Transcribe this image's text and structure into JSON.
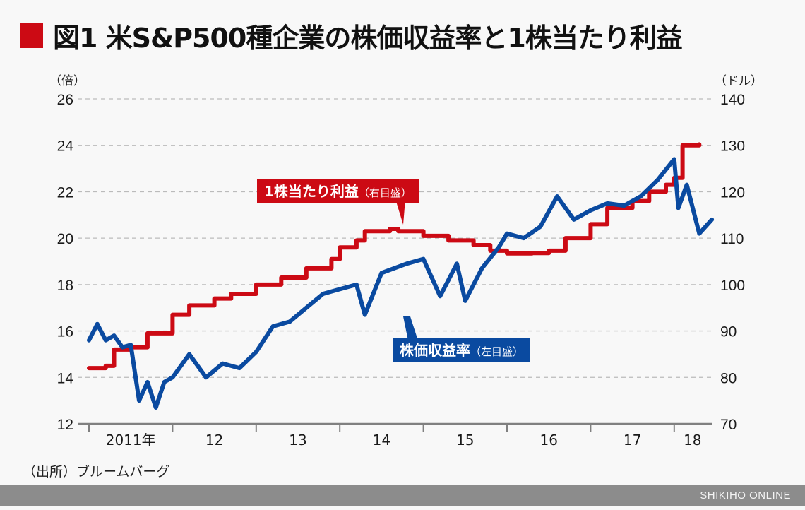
{
  "header": {
    "title": "図1 米S&P500種企業の株価収益率と1株当たり利益"
  },
  "axes": {
    "left_unit": "（倍）",
    "right_unit": "（ドル）",
    "left_ticks": [
      "26",
      "24",
      "22",
      "20",
      "18",
      "16",
      "14",
      "12"
    ],
    "right_ticks": [
      "140",
      "130",
      "120",
      "110",
      "100",
      "90",
      "80",
      "70"
    ],
    "x_ticks": [
      "2011年",
      "12",
      "13",
      "14",
      "15",
      "16",
      "17",
      "18"
    ]
  },
  "callouts": {
    "eps_main": "1株当たり利益",
    "eps_note": "（右目盛）",
    "pe_main": "株価収益率",
    "pe_note": "（左目盛）"
  },
  "source": "（出所）ブルームバーグ",
  "footer": {
    "brand": "SHIKIHO ONLINE"
  },
  "colors": {
    "eps": "#cc0a14",
    "pe": "#0a4aa0",
    "grid": "#bbbbbb",
    "footer": "#8c8c8c"
  },
  "chart_data": {
    "type": "line",
    "title": "図1 米S&P500種企業の株価収益率と1株当たり利益",
    "xlabel": "",
    "ylabel": "株価収益率（倍）",
    "ylabel_right": "1株当たり利益（ドル）",
    "ylim": [
      12,
      26
    ],
    "ylim_right": [
      70,
      140
    ],
    "grid": true,
    "legend_position": "inline callouts",
    "categories": [
      "2011",
      "2012",
      "2013",
      "2014",
      "2015",
      "2016",
      "2017",
      "2018"
    ],
    "series": [
      {
        "name": "株価収益率（左目盛）",
        "axis": "left",
        "x": [
          2011.0,
          2011.1,
          2011.2,
          2011.3,
          2011.4,
          2011.5,
          2011.6,
          2011.7,
          2011.8,
          2011.9,
          2012.0,
          2012.2,
          2012.4,
          2012.6,
          2012.8,
          2013.0,
          2013.2,
          2013.4,
          2013.6,
          2013.8,
          2014.0,
          2014.2,
          2014.3,
          2014.5,
          2014.8,
          2015.0,
          2015.2,
          2015.4,
          2015.5,
          2015.7,
          2015.9,
          2016.0,
          2016.2,
          2016.4,
          2016.6,
          2016.8,
          2017.0,
          2017.2,
          2017.4,
          2017.6,
          2017.8,
          2018.0,
          2018.05,
          2018.15,
          2018.3,
          2018.45
        ],
        "values": [
          15.6,
          16.3,
          15.6,
          15.8,
          15.3,
          15.4,
          13.0,
          13.8,
          12.7,
          13.8,
          14.0,
          15.0,
          14.0,
          14.6,
          14.4,
          15.1,
          16.2,
          16.4,
          17.0,
          17.6,
          17.8,
          18.0,
          16.7,
          18.5,
          18.9,
          19.1,
          17.5,
          18.9,
          17.3,
          18.7,
          19.6,
          20.2,
          20.0,
          20.5,
          21.8,
          20.8,
          21.2,
          21.5,
          21.4,
          21.8,
          22.5,
          23.4,
          21.3,
          22.3,
          20.2,
          20.8
        ]
      },
      {
        "name": "1株当たり利益（右目盛）",
        "axis": "right",
        "x": [
          2011.0,
          2011.2,
          2011.3,
          2011.5,
          2011.7,
          2012.0,
          2012.2,
          2012.5,
          2012.7,
          2013.0,
          2013.3,
          2013.6,
          2013.9,
          2014.0,
          2014.2,
          2014.3,
          2014.6,
          2014.7,
          2015.0,
          2015.3,
          2015.6,
          2015.8,
          2016.0,
          2016.3,
          2016.5,
          2016.7,
          2017.0,
          2017.2,
          2017.5,
          2017.7,
          2017.9,
          2018.0,
          2018.1,
          2018.3
        ],
        "values": [
          82,
          82.5,
          86,
          86.5,
          89.5,
          93.5,
          95.5,
          97,
          98,
          100,
          101.5,
          103.5,
          105.5,
          108,
          109.5,
          111.5,
          112,
          111.5,
          110.5,
          109.5,
          108.5,
          107.3,
          106.7,
          106.8,
          107.3,
          110,
          113,
          116.5,
          118,
          120,
          121.5,
          123,
          130,
          130.2
        ]
      }
    ]
  }
}
